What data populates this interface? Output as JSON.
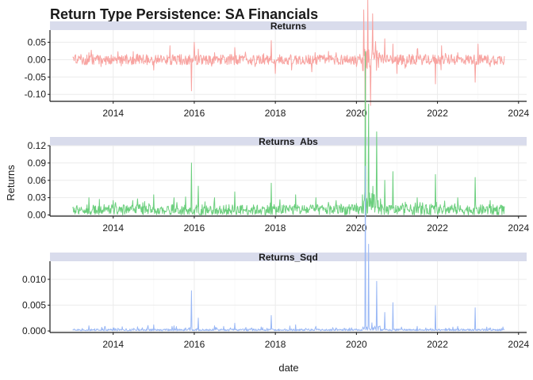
{
  "chart_data": {
    "type": "line",
    "title": "Return Type Persistence: SA Financials",
    "xlabel": "date",
    "ylabel": "Returns",
    "x_range": [
      2013.0,
      2023.67
    ],
    "x_ticks": [
      2014,
      2016,
      2018,
      2020,
      2022,
      2024
    ],
    "x_tick_labels": [
      "2014",
      "2016",
      "2018",
      "2020",
      "2022",
      "2024"
    ],
    "grid": true,
    "legend": "none",
    "panels": [
      {
        "name": "Returns",
        "color": "#f8a3a0",
        "ylim": [
          -0.12,
          0.085
        ],
        "y_ticks": [
          0.05,
          0.0,
          -0.05,
          -0.1
        ],
        "y_tick_labels": [
          "0.05",
          "0.00",
          "-0.05",
          "-0.10"
        ],
        "baseline": 0,
        "points": [
          [
            2013.0,
            0.008
          ],
          [
            2013.3,
            -0.015
          ],
          [
            2013.4,
            0.02
          ],
          [
            2013.7,
            -0.02
          ],
          [
            2014.2,
            -0.018
          ],
          [
            2014.6,
            0.016
          ],
          [
            2015.0,
            -0.03
          ],
          [
            2015.4,
            0.04
          ],
          [
            2015.7,
            -0.015
          ],
          [
            2015.93,
            -0.09
          ],
          [
            2016.0,
            0.05
          ],
          [
            2016.1,
            0.03
          ],
          [
            2016.5,
            0.02
          ],
          [
            2017.0,
            0.035
          ],
          [
            2017.5,
            -0.02
          ],
          [
            2017.9,
            0.055
          ],
          [
            2018.0,
            -0.04
          ],
          [
            2018.4,
            -0.03
          ],
          [
            2018.9,
            -0.035
          ],
          [
            2019.5,
            0.02
          ],
          [
            2020.0,
            -0.02
          ],
          [
            2020.18,
            0.065
          ],
          [
            2020.22,
            -0.12
          ],
          [
            2020.28,
            0.08
          ],
          [
            2020.35,
            -0.06
          ],
          [
            2020.4,
            0.06
          ],
          [
            2020.7,
            0.06
          ],
          [
            2020.9,
            0.045
          ],
          [
            2021.0,
            -0.04
          ],
          [
            2021.5,
            0.03
          ],
          [
            2021.95,
            -0.07
          ],
          [
            2022.1,
            0.04
          ],
          [
            2022.5,
            0.02
          ],
          [
            2022.93,
            -0.065
          ],
          [
            2023.0,
            0.045
          ],
          [
            2023.3,
            -0.02
          ],
          [
            2023.65,
            0.01
          ]
        ]
      },
      {
        "name": "Returns_Abs",
        "color": "#6ccf7e",
        "ylim": [
          -0.002,
          0.12
        ],
        "y_ticks": [
          0.0,
          0.03,
          0.06,
          0.09,
          0.12
        ],
        "y_tick_labels": [
          "0.00",
          "0.03",
          "0.06",
          "0.09",
          "0.12"
        ],
        "baseline": 0,
        "points": [
          [
            2013.0,
            0.012
          ],
          [
            2013.4,
            0.03
          ],
          [
            2014.0,
            0.025
          ],
          [
            2014.6,
            0.028
          ],
          [
            2015.0,
            0.035
          ],
          [
            2015.5,
            0.03
          ],
          [
            2015.93,
            0.09
          ],
          [
            2016.1,
            0.05
          ],
          [
            2016.5,
            0.03
          ],
          [
            2017.0,
            0.04
          ],
          [
            2017.9,
            0.055
          ],
          [
            2018.5,
            0.035
          ],
          [
            2019.0,
            0.03
          ],
          [
            2019.5,
            0.025
          ],
          [
            2020.0,
            0.02
          ],
          [
            2020.22,
            0.118
          ],
          [
            2020.3,
            0.08
          ],
          [
            2020.5,
            0.06
          ],
          [
            2020.7,
            0.06
          ],
          [
            2020.9,
            0.075
          ],
          [
            2021.5,
            0.03
          ],
          [
            2021.95,
            0.07
          ],
          [
            2022.5,
            0.03
          ],
          [
            2022.93,
            0.065
          ],
          [
            2023.3,
            0.025
          ],
          [
            2023.65,
            0.015
          ]
        ]
      },
      {
        "name": "Returns_Sqd",
        "color": "#9ab8f5",
        "ylim": [
          -0.0003,
          0.0135
        ],
        "y_ticks": [
          0.0,
          0.005,
          0.01
        ],
        "y_tick_labels": [
          "0.000",
          "0.005",
          "0.010"
        ],
        "baseline": 0,
        "points": [
          [
            2013.0,
            0.0002
          ],
          [
            2013.4,
            0.001
          ],
          [
            2014.0,
            0.0006
          ],
          [
            2014.6,
            0.0008
          ],
          [
            2015.0,
            0.0012
          ],
          [
            2015.5,
            0.001
          ],
          [
            2015.93,
            0.0078
          ],
          [
            2016.1,
            0.0025
          ],
          [
            2016.5,
            0.001
          ],
          [
            2017.0,
            0.0015
          ],
          [
            2017.9,
            0.003
          ],
          [
            2018.5,
            0.0012
          ],
          [
            2019.0,
            0.0009
          ],
          [
            2019.5,
            0.0006
          ],
          [
            2020.0,
            0.0004
          ],
          [
            2020.22,
            0.0133
          ],
          [
            2020.3,
            0.007
          ],
          [
            2020.5,
            0.004
          ],
          [
            2020.7,
            0.0036
          ],
          [
            2020.9,
            0.0055
          ],
          [
            2021.5,
            0.0009
          ],
          [
            2021.95,
            0.0049
          ],
          [
            2022.5,
            0.0009
          ],
          [
            2022.93,
            0.0045
          ],
          [
            2023.3,
            0.0006
          ],
          [
            2023.65,
            0.0002
          ]
        ]
      }
    ]
  }
}
